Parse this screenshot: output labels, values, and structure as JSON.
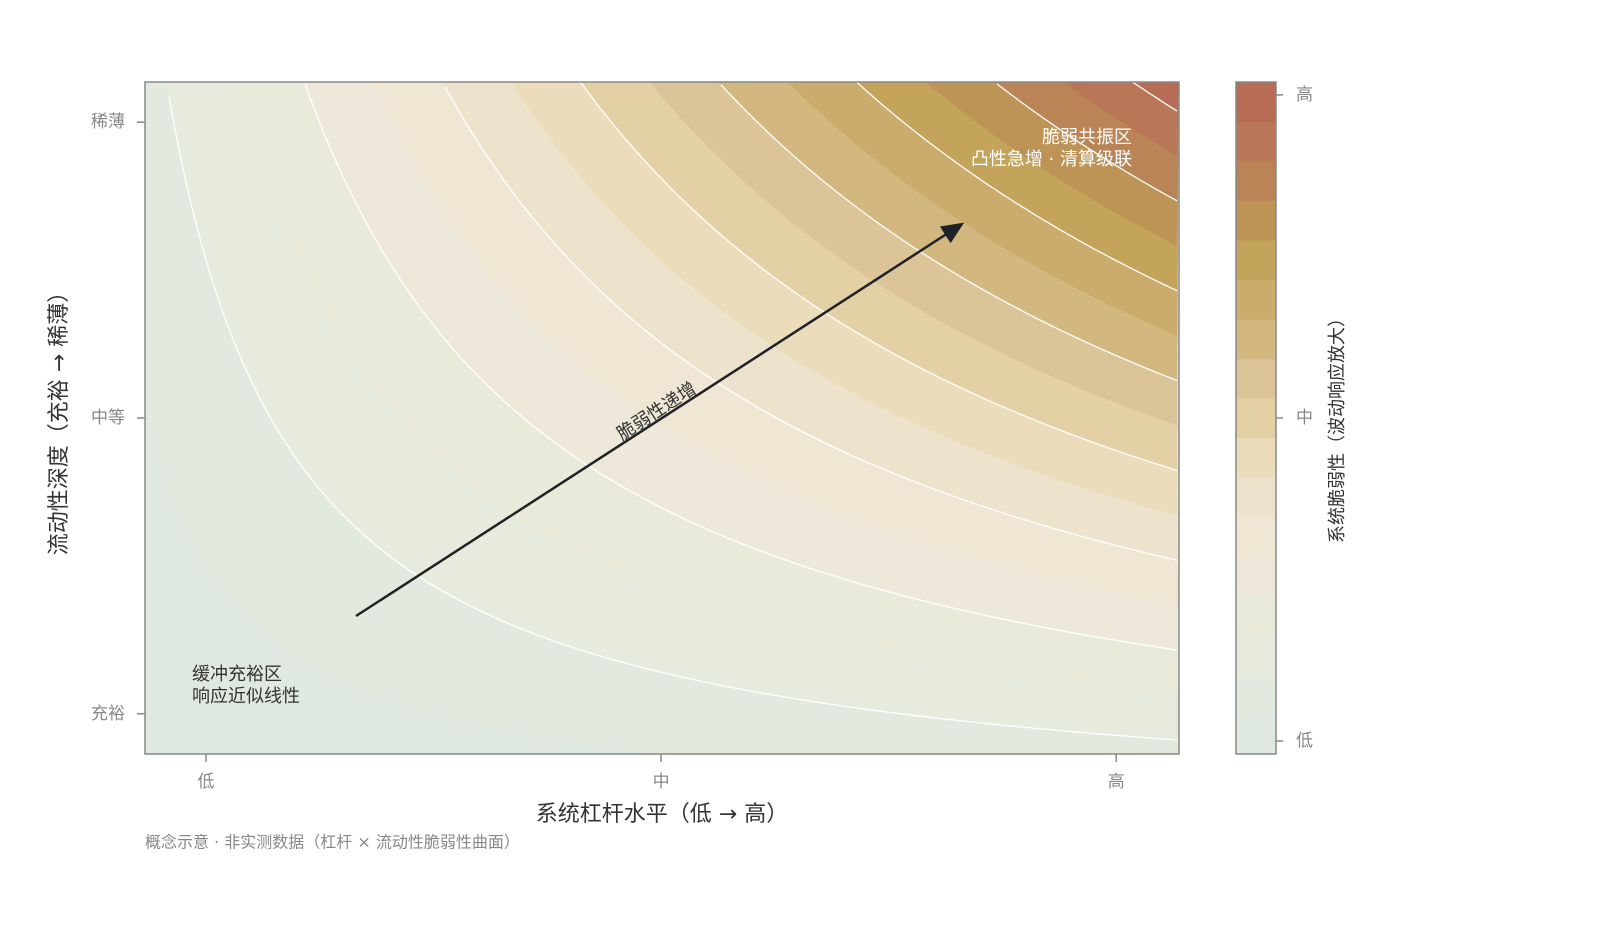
{
  "chart_data": {
    "type": "contour",
    "xlabel": "系统杠杆水平（低 → 高）",
    "ylabel": "流动性深度（充裕 → 稀薄）",
    "colorbar_label": "系统脆弱性（波动响应放大）",
    "footnote": "概念示意 · 非实测数据（杠杆 × 流动性脆弱性曲面）",
    "xlim": [
      -0.067,
      1.069
    ],
    "ylim": [
      -0.068,
      1.068
    ],
    "xticks": [
      {
        "value": 0,
        "label": "低"
      },
      {
        "value": 0.5,
        "label": "中"
      },
      {
        "value": 1,
        "label": "高"
      }
    ],
    "yticks": [
      {
        "value": 0,
        "label": "充裕"
      },
      {
        "value": 0.5,
        "label": "中等"
      },
      {
        "value": 1,
        "label": "稀薄"
      }
    ],
    "clim": [
      -0.02,
      1.02
    ],
    "cticks": [
      {
        "value": 0,
        "label": "低"
      },
      {
        "value": 0.5,
        "label": "中"
      },
      {
        "value": 1,
        "label": "高"
      }
    ],
    "colors": [
      "#dfe9e1",
      "#e2eadf",
      "#e6ebdd",
      "#eaeadb",
      "#ede8d9",
      "#efe7d4",
      "#ede3cc",
      "#ebdcbb",
      "#e3d0a5",
      "#dbc497",
      "#d2b87f",
      "#cbac6c",
      "#c4a35a",
      "#bd9456",
      "#bb8456",
      "#b97757",
      "#b86c56"
    ],
    "annotations": {
      "high_title": "脆弱共振区",
      "high_sub": "凸性急增 · 清算级联",
      "low_title": "缓冲充裕区",
      "low_sub": "响应近似线性",
      "arrow": "脆弱性递增"
    }
  }
}
